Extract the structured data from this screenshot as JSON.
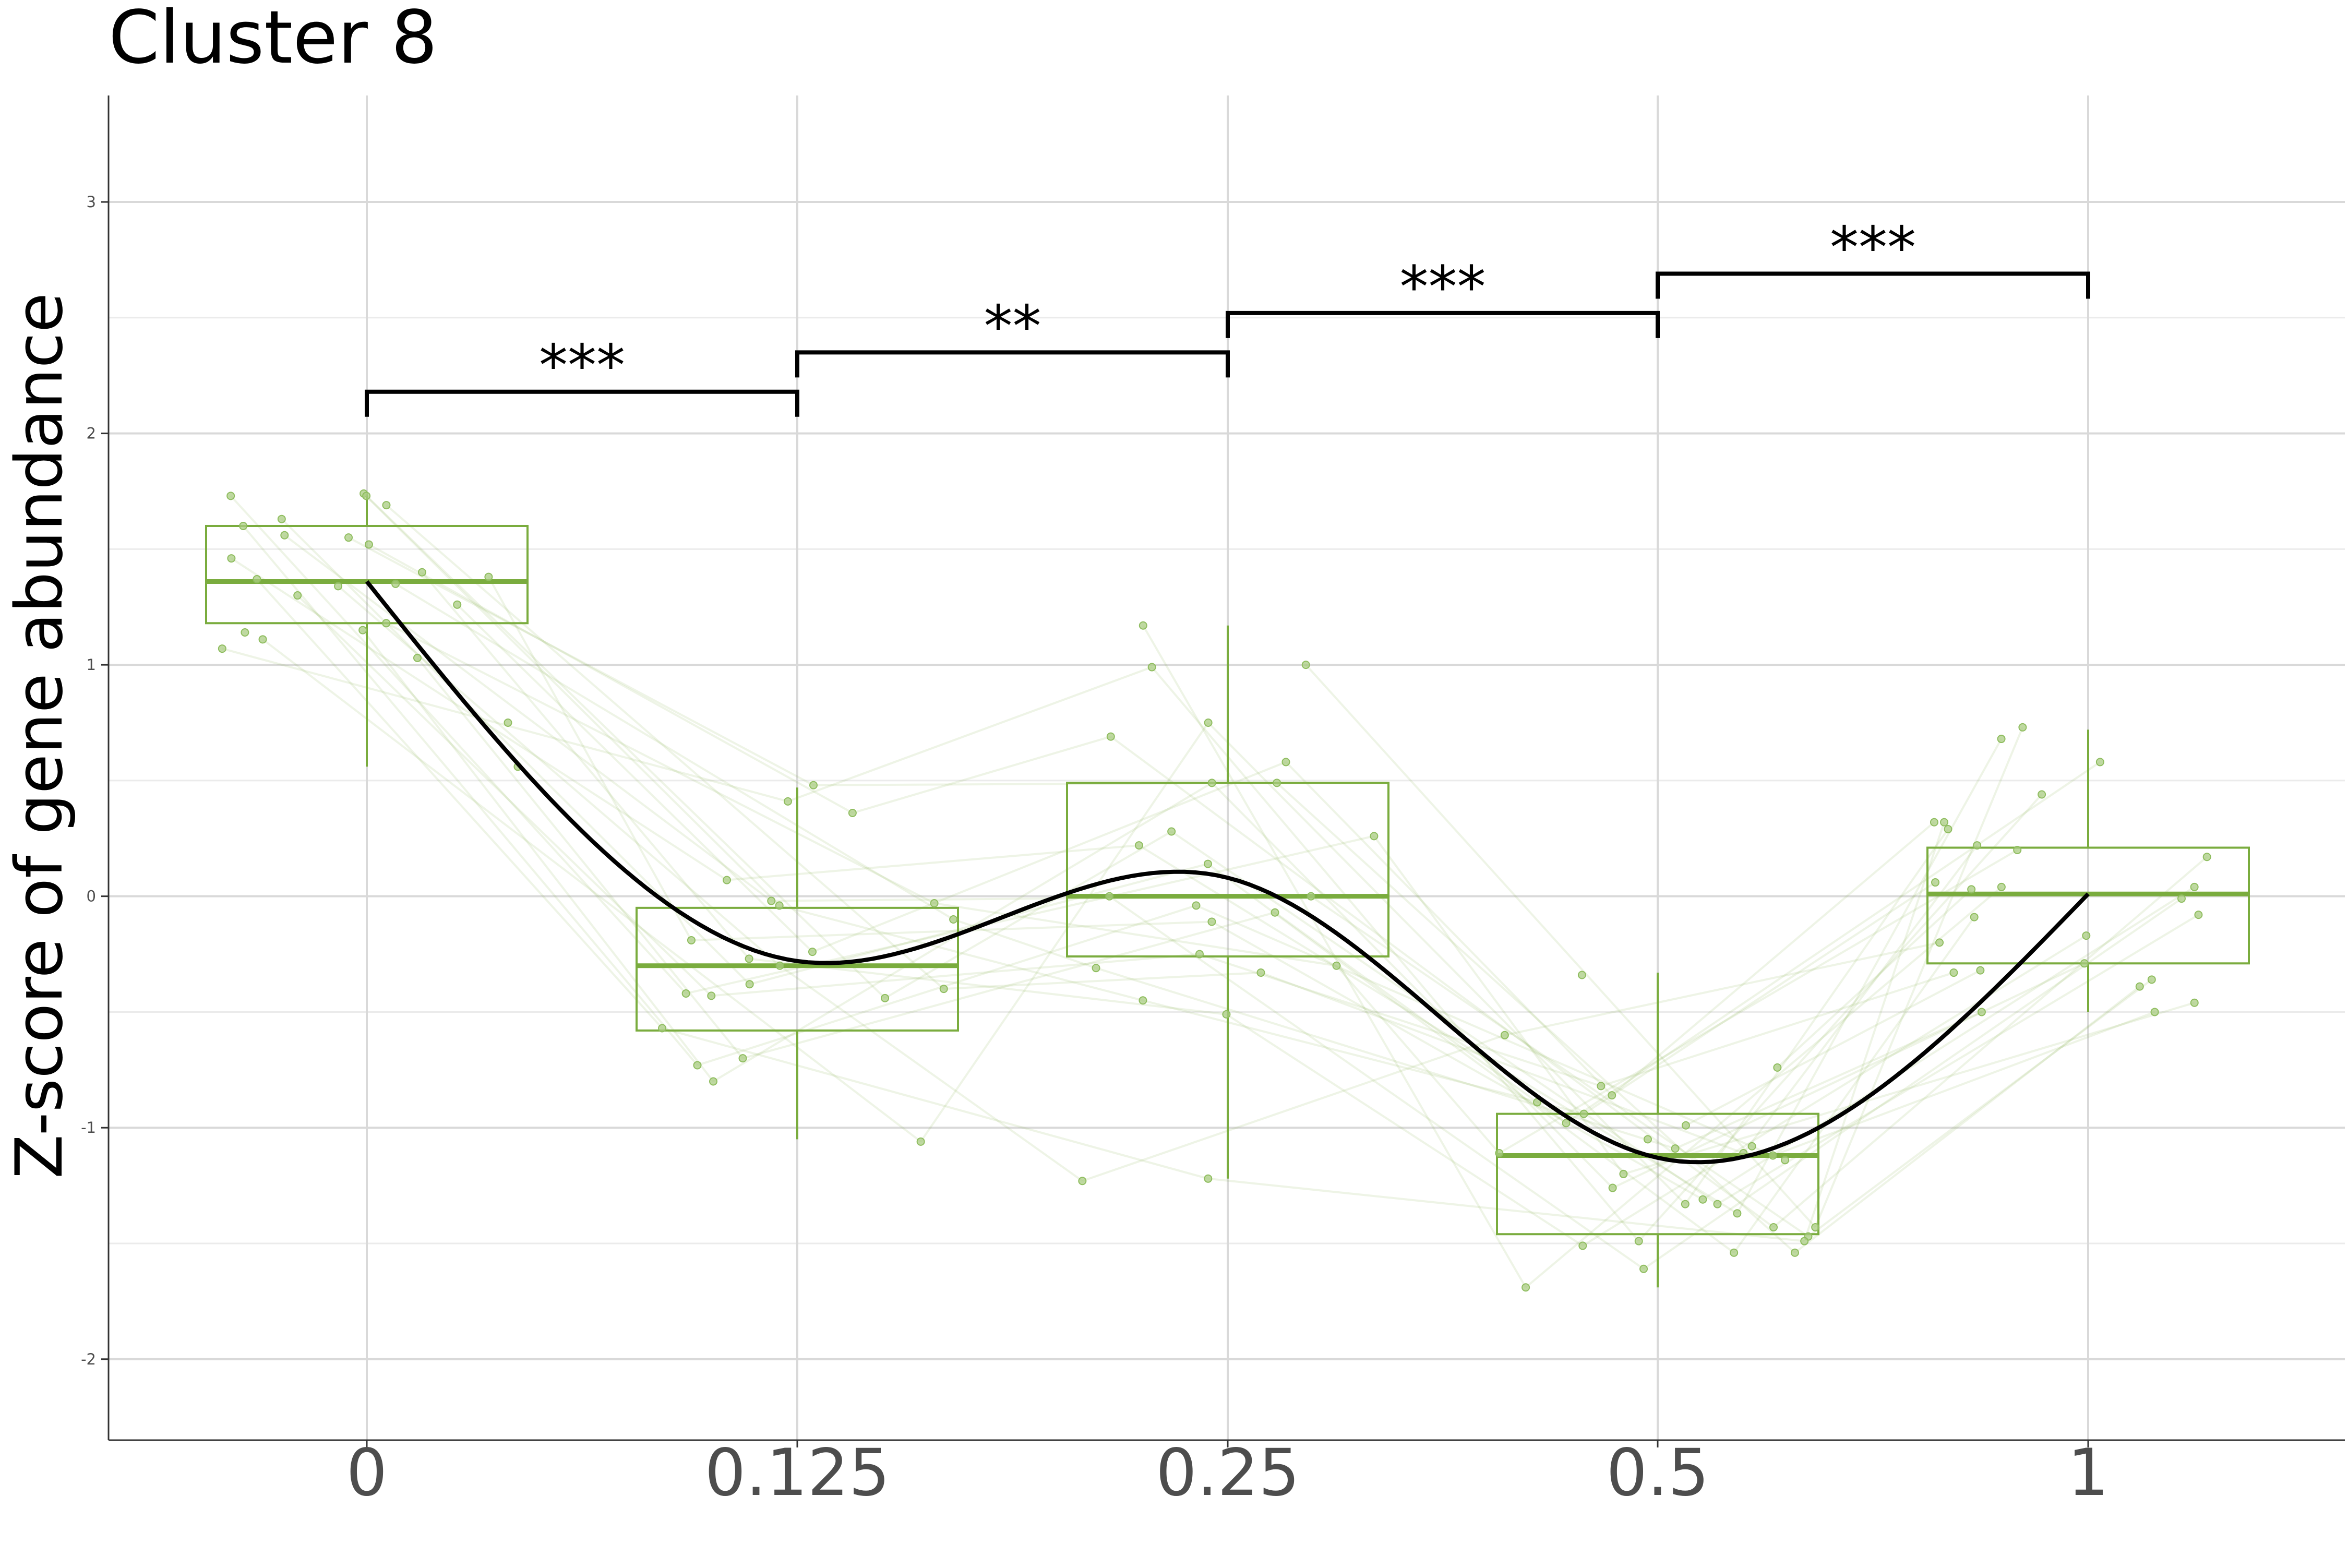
{
  "chart_data": {
    "type": "box",
    "title": "Cluster 8",
    "xlabel": "",
    "ylabel": "Z-score of gene abundance",
    "categories": [
      "0",
      "0.125",
      "0.25",
      "0.5",
      "1"
    ],
    "y_ticks": [
      "-2",
      "-1",
      "0",
      "1",
      "2",
      "3"
    ],
    "ylim": [
      -2.35,
      3.46
    ],
    "grid": true,
    "box_color": "#7aac3e",
    "point_color": "#a9cc82",
    "line_color": "#7aac3e",
    "fit_color": "#000000",
    "bracket_color": "#000000",
    "boxes": [
      {
        "category": "0",
        "whisker_low": 0.56,
        "q1": 1.18,
        "median": 1.36,
        "q3": 1.6,
        "whisker_high": 1.74
      },
      {
        "category": "0.125",
        "whisker_low": -1.05,
        "q1": -0.58,
        "median": -0.3,
        "q3": -0.05,
        "whisker_high": 0.47
      },
      {
        "category": "0.25",
        "whisker_low": -1.22,
        "q1": -0.26,
        "median": 0.0,
        "q3": 0.49,
        "whisker_high": 1.17
      },
      {
        "category": "0.5",
        "whisker_low": -1.69,
        "q1": -1.46,
        "median": -1.12,
        "q3": -0.94,
        "whisker_high": -0.33
      },
      {
        "category": "1",
        "whisker_low": -0.5,
        "q1": -0.29,
        "median": 0.01,
        "q3": 0.21,
        "whisker_high": 0.72
      }
    ],
    "points": [
      {
        "category": "0",
        "values": [
          1.74,
          1.69,
          1.6,
          1.56,
          1.55,
          1.52,
          1.46,
          1.38,
          1.35,
          1.34,
          1.3,
          1.26,
          1.03,
          1.73,
          1.73,
          1.63,
          1.4,
          1.37,
          1.18,
          1.15,
          1.11,
          1.07,
          0.75,
          0.56,
          1.14
        ]
      },
      {
        "category": "0.125",
        "values": [
          -0.04,
          -0.4,
          -0.73,
          -0.02,
          0.48,
          0.36,
          0.07,
          -0.19,
          -0.1,
          -0.3,
          -0.43,
          -0.24,
          -0.7,
          -0.42,
          -0.44,
          -0.38,
          -0.27,
          -0.57,
          -0.03,
          -0.8,
          -1.06,
          0.41
        ]
      },
      {
        "category": "0.25",
        "values": [
          -0.45,
          -0.33,
          -0.04,
          0.0,
          0.49,
          0.69,
          0.22,
          -0.11,
          -0.31,
          -1.23,
          -0.25,
          0.58,
          -0.07,
          0.26,
          0.28,
          0.14,
          -0.51,
          -1.22,
          -0.3,
          0.49,
          0.75,
          0.99,
          1.17,
          1.0,
          0.0
        ]
      },
      {
        "category": "0.5",
        "values": [
          -0.94,
          -1.11,
          -1.12,
          -1.47,
          -1.54,
          -1.43,
          -1.37,
          -1.31,
          -1.09,
          -0.6,
          -0.82,
          -0.86,
          -0.98,
          -1.2,
          -1.33,
          -1.54,
          -1.51,
          -1.49,
          -1.11,
          -1.26,
          -1.33,
          -1.49,
          -1.69,
          -1.43,
          -1.61,
          -0.74,
          -0.99,
          -1.05,
          -0.89,
          -1.08,
          -1.14,
          -0.34
        ]
      },
      {
        "category": "1",
        "values": [
          0.06,
          0.22,
          -0.5,
          -0.36,
          -0.39,
          0.17,
          0.68,
          0.04,
          -0.5,
          -0.2,
          -0.33,
          0.32,
          0.58,
          -0.46,
          -0.08,
          -0.09,
          -0.17,
          0.32,
          0.2,
          -0.29,
          0.29,
          0.44,
          0.04,
          0.73,
          -0.01,
          0.03,
          -0.32
        ]
      }
    ],
    "fitted_curve": [
      {
        "x": 0,
        "y": 1.36
      },
      {
        "x": 0.125,
        "y": -0.28
      },
      {
        "x": 0.25,
        "y": 0.08
      },
      {
        "x": 0.5,
        "y": -1.13
      },
      {
        "x": 1,
        "y": 0.01
      }
    ],
    "significance": [
      {
        "from": "0",
        "to": "0.125",
        "label": "***",
        "y": 2.18
      },
      {
        "from": "0.125",
        "to": "0.25",
        "label": "**",
        "y": 2.35
      },
      {
        "from": "0.25",
        "to": "0.5",
        "label": "***",
        "y": 2.52
      },
      {
        "from": "0.5",
        "to": "1",
        "label": "***",
        "y": 2.69
      }
    ]
  }
}
